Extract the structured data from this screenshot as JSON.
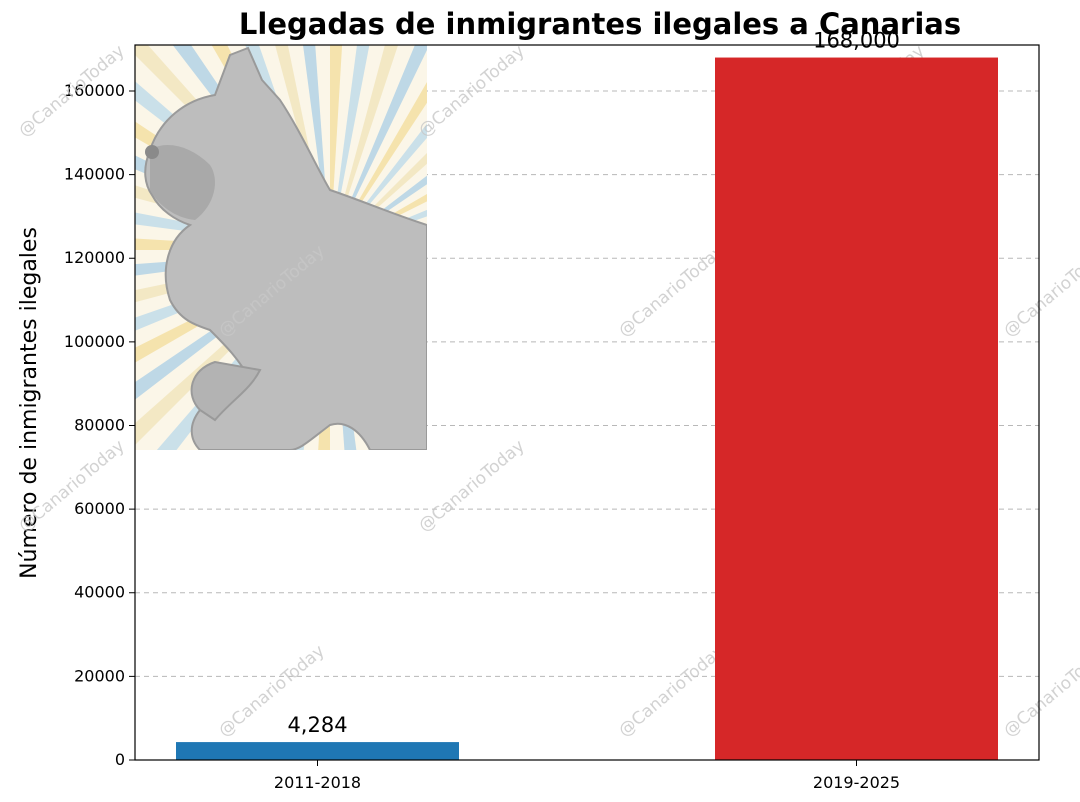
{
  "chart_data": {
    "type": "bar",
    "title": "Llegadas de inmigrantes ilegales a Canarias",
    "xlabel": "",
    "ylabel": "Número de inmigrantes ilegales",
    "categories": [
      "2011-2018",
      "2019-2025"
    ],
    "values": [
      4284,
      168000
    ],
    "value_labels": [
      "4,284",
      "168,000"
    ],
    "colors": [
      "#1f77b4",
      "#d62728"
    ],
    "ylim": [
      0,
      171000
    ],
    "yticks": [
      0,
      20000,
      40000,
      60000,
      80000,
      100000,
      120000,
      140000,
      160000
    ],
    "ytick_labels": [
      "0",
      "20000",
      "40000",
      "60000",
      "80000",
      "100000",
      "120000",
      "140000",
      "160000"
    ],
    "grid": "horizontal dashed"
  },
  "watermark": "@CanarioToday"
}
